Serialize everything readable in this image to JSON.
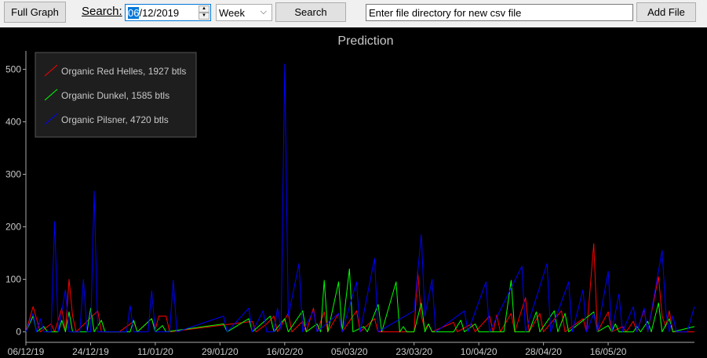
{
  "toolbar": {
    "full_graph_label": "Full Graph",
    "search_label": "Search:",
    "date_selected": "06",
    "date_rest": "/12/2019",
    "period_value": "Week",
    "search_button_label": "Search",
    "csv_placeholder": "Enter file directory for new csv file",
    "add_file_label": "Add File"
  },
  "chart_data": {
    "type": "line",
    "title": "Prediction",
    "xlabel": "",
    "ylabel": "",
    "ylim": [
      -20,
      535
    ],
    "yticks": [
      0,
      100,
      200,
      300,
      400,
      500
    ],
    "x_start": "06/12/19",
    "x_end": "09/06/20",
    "x_tick_labels": [
      "06/12/19",
      "24/12/19",
      "11/01/20",
      "29/01/20",
      "16/02/20",
      "05/03/20",
      "23/03/20",
      "10/04/20",
      "28/04/20",
      "16/05/20"
    ],
    "legend_position": "top-left",
    "grid": false,
    "series": [
      {
        "name": "Organic Red Helles, 1927 btls",
        "color": "#ff0000",
        "points": [
          [
            "06/12/19",
            0
          ],
          [
            "08/12/19",
            48
          ],
          [
            "10/12/19",
            0
          ],
          [
            "13/12/19",
            15
          ],
          [
            "14/12/19",
            0
          ],
          [
            "16/12/19",
            45
          ],
          [
            "17/12/19",
            0
          ],
          [
            "18/12/19",
            100
          ],
          [
            "19/12/19",
            30
          ],
          [
            "20/12/19",
            0
          ],
          [
            "26/12/19",
            40
          ],
          [
            "27/12/19",
            0
          ],
          [
            "01/01/20",
            0
          ],
          [
            "05/01/20",
            20
          ],
          [
            "06/01/20",
            0
          ],
          [
            "10/01/20",
            25
          ],
          [
            "11/01/20",
            5
          ],
          [
            "12/01/20",
            30
          ],
          [
            "14/01/20",
            30
          ],
          [
            "15/01/20",
            0
          ],
          [
            "07/02/20",
            20
          ],
          [
            "08/02/20",
            0
          ],
          [
            "11/02/20",
            15
          ],
          [
            "13/02/20",
            30
          ],
          [
            "14/02/20",
            0
          ],
          [
            "17/02/20",
            35
          ],
          [
            "18/02/20",
            0
          ],
          [
            "21/02/20",
            20
          ],
          [
            "22/02/20",
            0
          ],
          [
            "24/02/20",
            45
          ],
          [
            "25/02/20",
            0
          ],
          [
            "27/02/20",
            38
          ],
          [
            "28/02/20",
            0
          ],
          [
            "02/03/20",
            35
          ],
          [
            "03/03/20",
            0
          ],
          [
            "07/03/20",
            40
          ],
          [
            "08/03/20",
            0
          ],
          [
            "12/03/20",
            25
          ],
          [
            "13/03/20",
            0
          ],
          [
            "23/03/20",
            0
          ],
          [
            "24/03/20",
            115
          ],
          [
            "25/03/20",
            30
          ],
          [
            "26/03/20",
            5
          ],
          [
            "27/03/20",
            15
          ],
          [
            "28/03/20",
            0
          ],
          [
            "03/04/20",
            18
          ],
          [
            "04/04/20",
            0
          ],
          [
            "08/04/20",
            15
          ],
          [
            "09/04/20",
            0
          ],
          [
            "13/04/20",
            30
          ],
          [
            "14/04/20",
            0
          ],
          [
            "15/04/20",
            32
          ],
          [
            "16/04/20",
            0
          ],
          [
            "19/04/20",
            35
          ],
          [
            "20/04/20",
            0
          ],
          [
            "23/04/20",
            65
          ],
          [
            "24/04/20",
            0
          ],
          [
            "27/04/20",
            35
          ],
          [
            "28/04/20",
            0
          ],
          [
            "03/05/20",
            40
          ],
          [
            "04/05/20",
            0
          ],
          [
            "09/05/20",
            25
          ],
          [
            "10/05/20",
            0
          ],
          [
            "12/05/20",
            168
          ],
          [
            "13/05/20",
            0
          ],
          [
            "16/05/20",
            38
          ],
          [
            "17/05/20",
            0
          ],
          [
            "20/05/20",
            10
          ],
          [
            "21/05/20",
            0
          ],
          [
            "23/05/20",
            20
          ],
          [
            "24/05/20",
            0
          ],
          [
            "26/05/20",
            42
          ],
          [
            "27/05/20",
            0
          ],
          [
            "30/05/20",
            105
          ],
          [
            "31/05/20",
            30
          ],
          [
            "01/06/20",
            10
          ],
          [
            "02/06/20",
            40
          ],
          [
            "03/06/20",
            0
          ],
          [
            "09/06/20",
            0
          ]
        ]
      },
      {
        "name": "Organic Dunkel, 1585 btls",
        "color": "#00ff00",
        "points": [
          [
            "06/12/19",
            0
          ],
          [
            "08/12/19",
            30
          ],
          [
            "09/12/19",
            0
          ],
          [
            "11/12/19",
            10
          ],
          [
            "12/12/19",
            0
          ],
          [
            "15/12/19",
            0
          ],
          [
            "16/12/19",
            22
          ],
          [
            "17/12/19",
            0
          ],
          [
            "18/12/19",
            38
          ],
          [
            "19/12/19",
            0
          ],
          [
            "23/12/19",
            0
          ],
          [
            "24/12/19",
            45
          ],
          [
            "25/12/19",
            0
          ],
          [
            "27/12/19",
            22
          ],
          [
            "28/12/19",
            0
          ],
          [
            "04/01/20",
            0
          ],
          [
            "05/01/20",
            22
          ],
          [
            "06/01/20",
            0
          ],
          [
            "10/01/20",
            25
          ],
          [
            "11/01/20",
            0
          ],
          [
            "13/01/20",
            12
          ],
          [
            "14/01/20",
            0
          ],
          [
            "30/01/20",
            15
          ],
          [
            "31/01/20",
            0
          ],
          [
            "06/02/20",
            25
          ],
          [
            "07/02/20",
            0
          ],
          [
            "12/02/20",
            30
          ],
          [
            "13/02/20",
            0
          ],
          [
            "16/02/20",
            25
          ],
          [
            "17/02/20",
            0
          ],
          [
            "21/02/20",
            40
          ],
          [
            "22/02/20",
            0
          ],
          [
            "25/02/20",
            15
          ],
          [
            "26/02/20",
            0
          ],
          [
            "27/02/20",
            98
          ],
          [
            "28/02/20",
            0
          ],
          [
            "02/03/20",
            95
          ],
          [
            "03/03/20",
            0
          ],
          [
            "05/03/20",
            120
          ],
          [
            "06/03/20",
            0
          ],
          [
            "09/03/20",
            10
          ],
          [
            "10/03/20",
            0
          ],
          [
            "13/03/20",
            52
          ],
          [
            "14/03/20",
            0
          ],
          [
            "18/03/20",
            95
          ],
          [
            "19/03/20",
            0
          ],
          [
            "20/03/20",
            10
          ],
          [
            "21/03/20",
            0
          ],
          [
            "23/03/20",
            0
          ],
          [
            "25/03/20",
            55
          ],
          [
            "26/03/20",
            0
          ],
          [
            "27/03/20",
            15
          ],
          [
            "28/03/20",
            0
          ],
          [
            "03/04/20",
            0
          ],
          [
            "05/04/20",
            22
          ],
          [
            "06/04/20",
            0
          ],
          [
            "09/04/20",
            15
          ],
          [
            "10/04/20",
            0
          ],
          [
            "17/04/20",
            0
          ],
          [
            "19/04/20",
            98
          ],
          [
            "20/04/20",
            0
          ],
          [
            "24/04/20",
            0
          ],
          [
            "26/04/20",
            38
          ],
          [
            "27/04/20",
            0
          ],
          [
            "01/05/20",
            40
          ],
          [
            "02/05/20",
            0
          ],
          [
            "04/05/20",
            35
          ],
          [
            "05/05/20",
            0
          ],
          [
            "12/05/20",
            38
          ],
          [
            "13/05/20",
            0
          ],
          [
            "16/05/20",
            12
          ],
          [
            "17/05/20",
            0
          ],
          [
            "18/05/20",
            15
          ],
          [
            "19/05/20",
            0
          ],
          [
            "23/05/20",
            0
          ],
          [
            "24/05/20",
            10
          ],
          [
            "25/05/20",
            0
          ],
          [
            "27/05/20",
            20
          ],
          [
            "28/05/20",
            0
          ],
          [
            "30/05/20",
            55
          ],
          [
            "31/05/20",
            0
          ],
          [
            "02/06/20",
            25
          ],
          [
            "03/06/20",
            0
          ],
          [
            "09/06/20",
            10
          ]
        ]
      },
      {
        "name": "Organic Pilsner, 4720 btls",
        "color": "#0000ff",
        "points": [
          [
            "06/12/19",
            0
          ],
          [
            "08/12/19",
            35
          ],
          [
            "09/12/19",
            0
          ],
          [
            "10/12/19",
            25
          ],
          [
            "11/12/19",
            0
          ],
          [
            "13/12/19",
            0
          ],
          [
            "14/12/19",
            210
          ],
          [
            "15/12/19",
            0
          ],
          [
            "17/12/19",
            80
          ],
          [
            "18/12/19",
            0
          ],
          [
            "21/12/19",
            0
          ],
          [
            "22/12/19",
            100
          ],
          [
            "23/12/19",
            0
          ],
          [
            "24/12/19",
            0
          ],
          [
            "25/12/19",
            268
          ],
          [
            "26/12/19",
            0
          ],
          [
            "03/01/20",
            0
          ],
          [
            "04/01/20",
            50
          ],
          [
            "05/01/20",
            0
          ],
          [
            "09/01/20",
            0
          ],
          [
            "10/01/20",
            78
          ],
          [
            "11/01/20",
            0
          ],
          [
            "15/01/20",
            0
          ],
          [
            "16/01/20",
            98
          ],
          [
            "17/01/20",
            0
          ],
          [
            "30/01/20",
            30
          ],
          [
            "31/01/20",
            0
          ],
          [
            "06/02/20",
            45
          ],
          [
            "07/02/20",
            0
          ],
          [
            "10/02/20",
            40
          ],
          [
            "11/02/20",
            0
          ],
          [
            "13/02/20",
            0
          ],
          [
            "14/02/20",
            45
          ],
          [
            "15/02/20",
            5
          ],
          [
            "16/02/20",
            510
          ],
          [
            "17/02/20",
            30
          ],
          [
            "20/02/20",
            130
          ],
          [
            "21/02/20",
            0
          ],
          [
            "24/02/20",
            40
          ],
          [
            "25/02/20",
            0
          ],
          [
            "02/03/20",
            35
          ],
          [
            "03/03/20",
            0
          ],
          [
            "07/03/20",
            95
          ],
          [
            "08/03/20",
            0
          ],
          [
            "12/03/20",
            140
          ],
          [
            "13/03/20",
            0
          ],
          [
            "23/03/20",
            40
          ],
          [
            "25/03/20",
            185
          ],
          [
            "26/03/20",
            30
          ],
          [
            "28/03/20",
            100
          ],
          [
            "29/03/20",
            0
          ],
          [
            "06/04/20",
            40
          ],
          [
            "07/04/20",
            0
          ],
          [
            "12/04/20",
            95
          ],
          [
            "13/04/20",
            0
          ],
          [
            "22/04/20",
            125
          ],
          [
            "23/04/20",
            0
          ],
          [
            "29/04/20",
            130
          ],
          [
            "30/04/20",
            0
          ],
          [
            "05/05/20",
            95
          ],
          [
            "06/05/20",
            0
          ],
          [
            "09/05/20",
            80
          ],
          [
            "10/05/20",
            0
          ],
          [
            "12/05/20",
            35
          ],
          [
            "13/05/20",
            0
          ],
          [
            "16/05/20",
            115
          ],
          [
            "17/05/20",
            0
          ],
          [
            "19/05/20",
            72
          ],
          [
            "20/05/20",
            0
          ],
          [
            "23/05/20",
            48
          ],
          [
            "24/05/20",
            0
          ],
          [
            "26/05/20",
            45
          ],
          [
            "27/05/20",
            0
          ],
          [
            "31/05/20",
            155
          ],
          [
            "01/06/20",
            40
          ],
          [
            "02/06/20",
            0
          ],
          [
            "03/06/20",
            30
          ],
          [
            "04/06/20",
            0
          ],
          [
            "07/06/20",
            0
          ],
          [
            "09/06/20",
            48
          ]
        ]
      }
    ]
  }
}
